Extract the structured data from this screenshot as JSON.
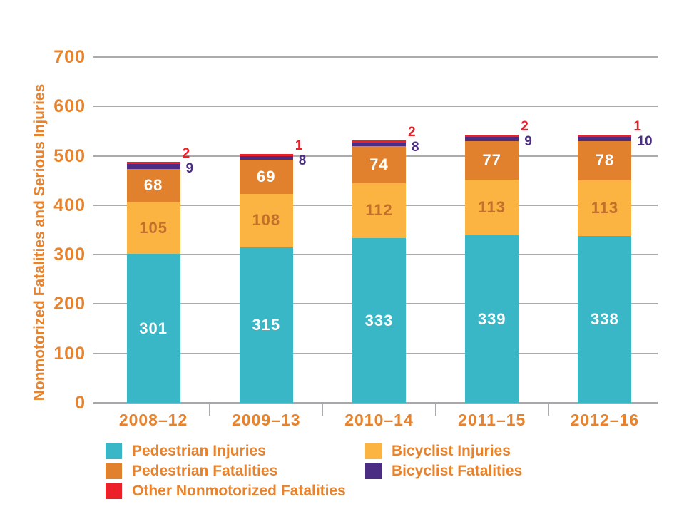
{
  "chart_data": {
    "type": "bar",
    "stacked": true,
    "title": "",
    "xlabel": "",
    "ylabel": "Nonmotorized Fatalities and Serious Injuries",
    "ylim": [
      0,
      700
    ],
    "y_ticks": [
      0,
      100,
      200,
      300,
      400,
      500,
      600,
      700
    ],
    "grid": true,
    "legend_position": "bottom",
    "categories": [
      "2008–12",
      "2009–13",
      "2010–14",
      "2011–15",
      "2012–16"
    ],
    "series": [
      {
        "name": "Pedestrian Injuries",
        "color": "#39B7C6",
        "label_color": "#FFFFFF",
        "label_outside": false,
        "values": [
          301,
          315,
          333,
          339,
          338
        ]
      },
      {
        "name": "Bicyclist Injuries",
        "color": "#FBB342",
        "label_color": "#C3702A",
        "label_outside": false,
        "values": [
          105,
          108,
          112,
          113,
          113
        ]
      },
      {
        "name": "Pedestrian Fatalities",
        "color": "#E2812D",
        "label_color": "#FFFFFF",
        "label_outside": false,
        "values": [
          68,
          69,
          74,
          77,
          78
        ]
      },
      {
        "name": "Bicyclist Fatalities",
        "color": "#4B2E83",
        "label_color": "#4B2E83",
        "label_outside": true,
        "values": [
          9,
          8,
          8,
          9,
          10
        ]
      },
      {
        "name": "Other Nonmotorized Fatalities",
        "color": "#EC2028",
        "label_color": "#EC2028",
        "label_outside": true,
        "values": [
          2,
          1,
          2,
          2,
          1
        ]
      }
    ],
    "legend_order": [
      "Pedestrian Injuries",
      "Bicyclist Injuries",
      "Pedestrian Fatalities",
      "Bicyclist Fatalities",
      "Other Nonmotorized Fatalities"
    ]
  },
  "styles": {
    "axis_text_color": "#E8832C",
    "grid_color": "#ABABAD",
    "axis_line_color": "#A8A8AA",
    "background": "#FFFFFF"
  }
}
